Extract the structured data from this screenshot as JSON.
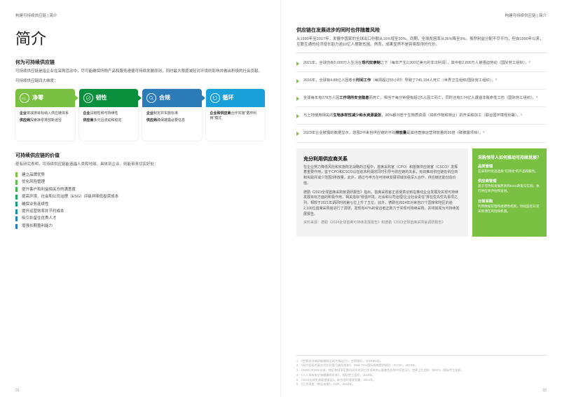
{
  "colors": {
    "accent_green": "#7ac143",
    "pillar_colors": [
      "#7ac143",
      "#0a8f3c",
      "#2b7bb9",
      "#1aa0d8"
    ],
    "grey_bg": "#f3f3f3",
    "text_body": "#555555",
    "text_heading": "#222222",
    "rule": "#e8e8e8",
    "footnote": "#aaaaaa"
  },
  "typography": {
    "title_pt": 22,
    "sub_h_pt": 7,
    "body_pt": 5.5,
    "footnote_pt": 4.2,
    "family": "Microsoft YaHei / PingFang SC"
  },
  "header": {
    "left": "构建可持续供应链 | 简介",
    "right": "构建可持续供应链 | 简介"
  },
  "left": {
    "title": "简介",
    "q_h": "何为可持续供应链",
    "q_b": "可持续供应链是指企业在采购活动中，尽可能确保所购产品和服务遵循可持续发展原则，同时最大限度减轻对环境的影响并做出积极的社会贡献。",
    "dim_line": "可持续供应链四大维度：",
    "pillars": [
      {
        "label": "净零",
        "kv": [
          {
            "k": "企业",
            "v": "将减排目标纳入供应链体系"
          },
          {
            "k": "供应商",
            "v": "探索净零排放新途径"
          }
        ]
      },
      {
        "label": "韧性",
        "kv": [
          {
            "k": "企业",
            "v": "具韧性和可持续性"
          },
          {
            "k": "供应商",
            "v": "多元且流动和稳定"
          }
        ]
      },
      {
        "label": "合规",
        "kv": [
          {
            "k": "企业",
            "v": "制定并实施标准"
          },
          {
            "k": "供应商",
            "v": "确保披露必要信息"
          }
        ]
      },
      {
        "label": "循环",
        "kv": [
          {
            "k": "企业和供应商",
            "v": "合作实施\"循环利用\"模式"
          }
        ]
      }
    ],
    "value_h": "可持续供应链的价值",
    "value_b": "现有研究表明，可持续供应链能造福人类和地球。具体到企业，则能带来切实好处：",
    "values": [
      "建立品牌优势",
      "优化风险管理",
      "提升客户和利益相关方的满意度",
      "提高环境、社会和公司治理（ESG）评级并降低投资成本",
      "确保业务连续性",
      "提升运营效率并节约成本",
      "吸引并留住优秀人才",
      "增强长期盈利能力"
    ],
    "page_no": "01"
  },
  "right": {
    "risk_h": "供应链在发展进步的同时也伴随着风险",
    "risk_intro": "从1990年至2017年，发展中国家的全球出口份额从16%增至30%。同期，全球贫困率从36%降至9%。虽然利益分配不尽平均，但自1990年以来，互联互通的经济增长助力逾10亿人摆脱贫困。然而，成果显然不是容易取得的代价。",
    "risks": [
      "2021年，全球仍有5,000万人生活在<b>现代奴隶制</b>之下（每年产生2,360亿美元的非法利润），其中有2,800万人被强迫劳动（国际劳工组织）。²",
      "2016年，全球有4.88亿人因卷长<b>时间工作</b>（每周超过55小时）导致了745,194人死亡（世界卫生组织/国际劳工组织）。³",
      "全球每年有278万人因<b>工作场所安全隐患</b>而死亡，相当于每分钟便有超过5人因工而亡，同时还有3.74亿人遭遇非致命性工伤（国际劳工组织）。⁴",
      "与土地使用相关的<b>生物多样性减少和水资源紧张</b>，90%都归咎于生物质资源（如农作物和林业）的开采和加工（联合国环境规划署）。⁵",
      "2023年企业披露的数据显示，范围3中来自供应链的平均<b>排放量</b>是其他直接运营排放量的26倍（碳披露项目）。⁶"
    ],
    "callout": {
      "h": "充分利用供应商关系",
      "p1": "在企业努力降低风险和实施既定战略的过程中，首席采购官（CPO）和首席供应链官（CSCO）发挥着重要作用，鉴于CPO和CSCO以在追求利润的同时引导与供应链的关系，有效推动供应链在供应商和实践并减少范围3排放量，此外，通过与申方在可持续发展领域加强深入合作，供应链还能创造价值。",
      "p2": "德勤《2023全球首席采购官调研报告》指出，首席采购官正逐渐意识到在推动企业发展及实现可持续发展目标方面的积极作用，相关指标\"增强环境、社会和公司治理/企业社会责任\"排在优先优先事项之列。相较于2021年调研时的第七位上升了五位。此外，德勤在2024年对来自27个国家和地区的逾2,100位首席采购官进行了调研，发现有47%的受访者正致力于实现可持续采购，并将其视为可持续发展报告。",
      "src": "资料来源：德勤《2024全球首席可持续发展报告》和德勤《2023全球首席采购官调研报告》",
      "side_h": "采购领导人如何推动可持续发展？",
      "side": [
        {
          "h": "品类管理",
          "b": "在采购时优选选择\"可持续\"的产品和服务。"
        },
        {
          "h": "供应商管理",
          "b": "基于可持续发展原则和ESG政策与实践，执行供应商评估和准进。"
        },
        {
          "h": "日常采购",
          "b": "利用数据管理和透明性机制，持续监控日常采购潜在风险和机遇。"
        }
      ]
    },
    "footnotes": [
      "1. 《世界经济调研新阐释全球大推动力》，世界银行，2019年8月。",
      "2. 《现代奴役的真实代价及盈亏者及机制》，Walk Free国际指南提供说明（ICCM），2023年。",
      "3. 《2000-2016年全球、地区和国家范围内因长时间工作导致的心脏病负担和中风状况》，世界卫生组织（WHO）/国际劳工组织。",
      "4. 《人人享有安全和健康的未来》，国际劳工组织，2019年。",
      "5. 《2024全球资源展望报告》，联合国环境规划署，2024年。",
      "6. 《巨大改变：商业未来》，CDP，2024年。"
    ],
    "page_no": "02"
  }
}
